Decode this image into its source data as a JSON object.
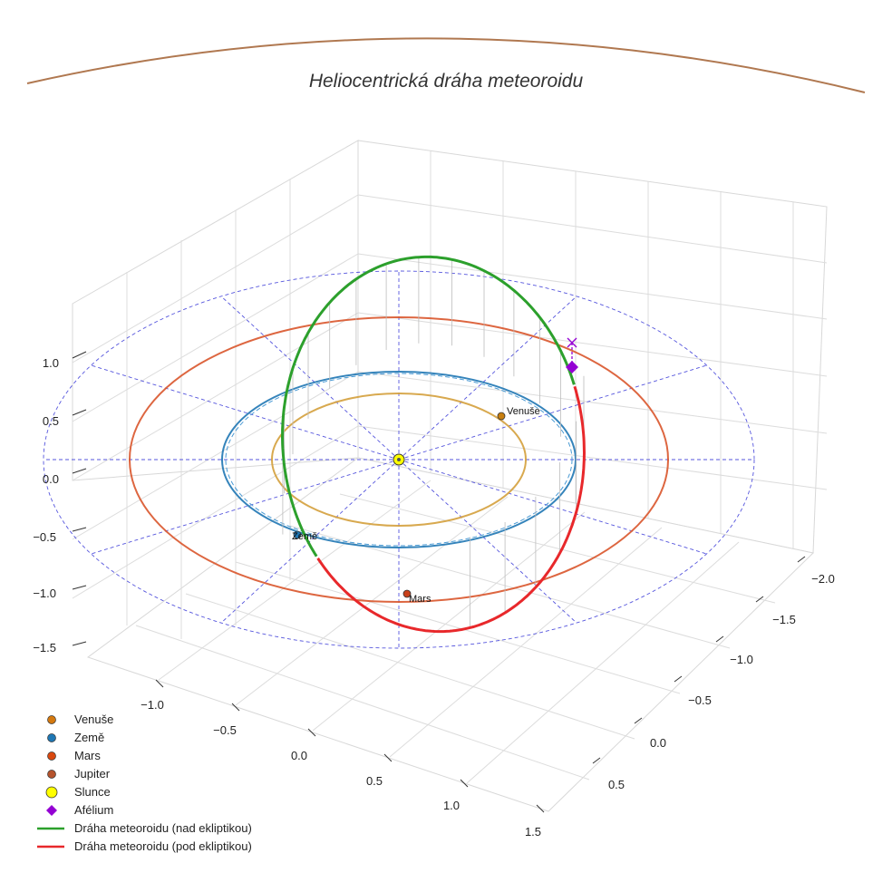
{
  "chart_data": {
    "type": "3d-line",
    "title": "Heliocentrická dráha meteoroidu",
    "x_ticks": [
      "−1.0",
      "−0.5",
      "0.0",
      "0.5",
      "1.0",
      "1.5"
    ],
    "y_ticks": [
      "−2.0",
      "−1.5",
      "−1.0",
      "−0.5",
      "0.0",
      "0.5"
    ],
    "z_ticks": [
      "1.0",
      "0.5",
      "0.0",
      "−0.5",
      "−1.0",
      "−1.5"
    ],
    "xlim": [
      -1.6,
      1.6
    ],
    "ylim": [
      -2.2,
      0.8
    ],
    "zlim": [
      -1.6,
      1.3
    ],
    "orbits": [
      {
        "name": "Venuše",
        "radius_au": 0.72,
        "color": "#d4a03c"
      },
      {
        "name": "Země",
        "radius_au": 1.0,
        "color": "#1f77b4"
      },
      {
        "name": "Mars",
        "radius_au": 1.52,
        "color": "#d9552b"
      },
      {
        "name": "Jupiter",
        "radius_au": 5.2,
        "color": "#b07850"
      }
    ],
    "planet_labels": [
      {
        "name": "Venuše",
        "color": "#c87f10"
      },
      {
        "name": "Země",
        "color": "#1f77b4"
      },
      {
        "name": "Mars",
        "color": "#c8401a"
      }
    ],
    "meteoroid_orbit": {
      "above_ecliptic_color": "#2ca02c",
      "below_ecliptic_color": "#e8282b"
    },
    "legend": [
      {
        "label": "Venuše",
        "kind": "dot",
        "color": "#d4790f"
      },
      {
        "label": "Země",
        "kind": "dot",
        "color": "#1f77b4"
      },
      {
        "label": "Mars",
        "kind": "dot",
        "color": "#d9480f"
      },
      {
        "label": "Jupiter",
        "kind": "dot",
        "color": "#b5532d"
      },
      {
        "label": "Slunce",
        "kind": "bigdot",
        "color": "#ffff00"
      },
      {
        "label": "Afélium",
        "kind": "diamond",
        "color": "#9400d3"
      },
      {
        "label": "Dráha meteoroidu (nad ekliptikou)",
        "kind": "line",
        "color": "#2ca02c"
      },
      {
        "label": "Dráha meteoroidu (pod ekliptikou)",
        "kind": "line",
        "color": "#e8282b"
      }
    ]
  }
}
